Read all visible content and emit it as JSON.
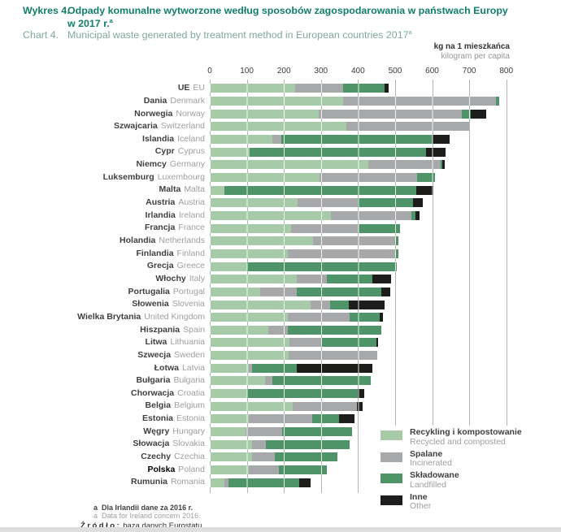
{
  "header": {
    "chart_label_pl": "Wykres 4.",
    "chart_label_en": "Chart 4.",
    "title_pl_line1": "Odpady komunalne wytworzone według sposobów zagospodarowania w państwach Europy",
    "title_pl_line2": "w 2017 r.",
    "title_en": "Municipal waste generated by treatment method in European countries 2017",
    "footnote_marker": "a"
  },
  "axis_unit": {
    "pl": "kg na 1 mieszkańca",
    "en": "kilogram per capita"
  },
  "legend": [
    {
      "key": "recycled-composted",
      "label_pl": "Recykling i kompostowanie",
      "label_en": "Recycled and composted",
      "color": "#a7cba9"
    },
    {
      "key": "incinerated",
      "label_pl": "Spalane",
      "label_en": "Incinerated",
      "color": "#a6a8aa"
    },
    {
      "key": "landfilled",
      "label_pl": "Składowane",
      "label_en": "Landfilled",
      "color": "#4f9468"
    },
    {
      "key": "other",
      "label_pl": "Inne",
      "label_en": "Other",
      "color": "#1d1d1b"
    }
  ],
  "chart_data": {
    "type": "bar",
    "stacked": true,
    "orientation": "horizontal",
    "title": "Odpady komunalne wytworzone według sposobów zagospodarowania w państwach Europy w 2017 r.",
    "title_en": "Municipal waste generated by treatment method in European countries 2017",
    "xlabel": "kg na 1 mieszkańca / kilogram per capita",
    "xlim": [
      0,
      800
    ],
    "xticks": [
      0,
      100,
      200,
      300,
      400,
      500,
      600,
      700,
      800
    ],
    "grid": true,
    "legend_position": "bottom-right",
    "series_order": [
      "Recykling i kompostowanie / Recycled and composted",
      "Spalane / Incinerated",
      "Składowane / Landfilled",
      "Inne / Other"
    ],
    "values_unit": "kg per capita",
    "categories": [
      {
        "pl": "UE",
        "en": "EU",
        "values": [
          230,
          130,
          112,
          10
        ],
        "bold": false
      },
      {
        "pl": "Dania",
        "en": "Denmark",
        "values": [
          360,
          412,
          8,
          0
        ],
        "bold": false
      },
      {
        "pl": "Norwegia",
        "en": "Norway",
        "values": [
          295,
          385,
          25,
          40
        ],
        "bold": false
      },
      {
        "pl": "Szwajcaria",
        "en": "Switzerland",
        "values": [
          368,
          331,
          0,
          0
        ],
        "bold": false
      },
      {
        "pl": "Islandia",
        "en": "Iceland",
        "values": [
          170,
          22,
          410,
          45
        ],
        "bold": false
      },
      {
        "pl": "Cypr",
        "en": "Cyprus",
        "values": [
          108,
          0,
          475,
          54
        ],
        "bold": false
      },
      {
        "pl": "Niemcy",
        "en": "Germany",
        "values": [
          427,
          196,
          5,
          5
        ],
        "bold": false
      },
      {
        "pl": "Luksemburg",
        "en": "Luxembourg",
        "values": [
          297,
          263,
          47,
          0
        ],
        "bold": false
      },
      {
        "pl": "Malta",
        "en": "Malta",
        "values": [
          40,
          0,
          517,
          47
        ],
        "bold": false
      },
      {
        "pl": "Austria",
        "en": "Austria",
        "values": [
          236,
          164,
          149,
          25
        ],
        "bold": false
      },
      {
        "pl": "Irlandia",
        "en": "Ireland",
        "values": [
          326,
          219,
          10,
          12
        ],
        "bold": false
      },
      {
        "pl": "Francja",
        "en": "France",
        "values": [
          220,
          182,
          111,
          0
        ],
        "bold": false
      },
      {
        "pl": "Holandia",
        "en": "Netherlands",
        "values": [
          278,
          225,
          7,
          0
        ],
        "bold": false
      },
      {
        "pl": "Finlandia",
        "en": "Finland",
        "values": [
          211,
          289,
          8,
          0
        ],
        "bold": false
      },
      {
        "pl": "Grecja",
        "en": "Greece",
        "values": [
          101,
          0,
          403,
          0
        ],
        "bold": false
      },
      {
        "pl": "Włochy",
        "en": "Italy",
        "values": [
          235,
          81,
          122,
          51
        ],
        "bold": false
      },
      {
        "pl": "Portugalia",
        "en": "Portugal",
        "values": [
          135,
          100,
          228,
          24
        ],
        "bold": false
      },
      {
        "pl": "Słowenia",
        "en": "Slovenia",
        "values": [
          272,
          52,
          52,
          95
        ],
        "bold": false
      },
      {
        "pl": "Wielka Brytania",
        "en": "United Kingdom",
        "values": [
          211,
          166,
          81,
          9
        ],
        "bold": false
      },
      {
        "pl": "Hiszpania",
        "en": "Spain",
        "values": [
          158,
          53,
          251,
          0
        ],
        "bold": false
      },
      {
        "pl": "Litwa",
        "en": "Lithuania",
        "values": [
          215,
          86,
          149,
          5
        ],
        "bold": false
      },
      {
        "pl": "Szwecja",
        "en": "Sweden",
        "values": [
          213,
          239,
          0,
          0
        ],
        "bold": false
      },
      {
        "pl": "Łotwa",
        "en": "Latvia",
        "values": [
          106,
          8,
          121,
          203
        ],
        "bold": false
      },
      {
        "pl": "Bułgaria",
        "en": "Bulgaria",
        "values": [
          150,
          19,
          266,
          0
        ],
        "bold": false
      },
      {
        "pl": "Chorwacja",
        "en": "Croatia",
        "values": [
          101,
          0,
          299,
          16
        ],
        "bold": false
      },
      {
        "pl": "Belgia",
        "en": "Belgium",
        "values": [
          224,
          172,
          0,
          17
        ],
        "bold": false
      },
      {
        "pl": "Estonia",
        "en": "Estonia",
        "values": [
          106,
          171,
          71,
          42
        ],
        "bold": false
      },
      {
        "pl": "Węgry",
        "en": "Hungary",
        "values": [
          96,
          100,
          189,
          0
        ],
        "bold": false
      },
      {
        "pl": "Słowacja",
        "en": "Slovakia",
        "values": [
          114,
          38,
          226,
          0
        ],
        "bold": false
      },
      {
        "pl": "Czechy",
        "en": "Czechia",
        "values": [
          114,
          61,
          169,
          0
        ],
        "bold": false
      },
      {
        "pl": "Polska",
        "en": "Poland",
        "values": [
          105,
          81,
          129,
          0
        ],
        "bold": true
      },
      {
        "pl": "Rumunia",
        "en": "Romania",
        "values": [
          39,
          12,
          191,
          30
        ],
        "bold": false
      }
    ]
  },
  "footnotes": {
    "marker": "a",
    "pl": "Dla Irlandii dane za 2016 r.",
    "en": "Data for Ireland concern 2016."
  },
  "source": {
    "label": "Źródło:",
    "text": "baza danych Eurostatu."
  }
}
